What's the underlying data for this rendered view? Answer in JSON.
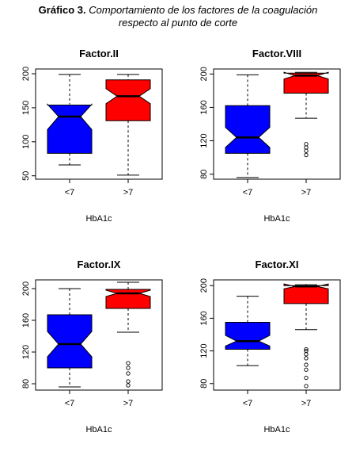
{
  "caption": {
    "lead": "Gráfico 3.",
    "line1": "Comportamiento de los factores de la coagulación",
    "line2": "respecto al punto de corte"
  },
  "colors": {
    "low_group": "#0000ff",
    "high_group": "#ff0000",
    "outline": "#000000"
  },
  "chart_data": [
    {
      "type": "boxplot",
      "title": "Factor.II",
      "xlabel": "HbA1c",
      "categories": [
        "<7",
        ">7"
      ],
      "yticks": [
        50,
        100,
        150,
        200
      ],
      "ylim": [
        45,
        207
      ],
      "notched": true,
      "boxes": [
        {
          "category": "<7",
          "color": "#0000ff",
          "whisker_low": 66,
          "q1": 83,
          "median": 137,
          "q3": 154,
          "whisker_high": 199,
          "notch_low": 118,
          "notch_high": 155,
          "outliers": []
        },
        {
          "category": ">7",
          "color": "#ff0000",
          "whisker_low": 51,
          "q1": 131,
          "median": 167,
          "q3": 191,
          "whisker_high": 199,
          "notch_low": 156,
          "notch_high": 178,
          "outliers": []
        }
      ]
    },
    {
      "type": "boxplot",
      "title": "Factor.VIII",
      "xlabel": "HbA1c",
      "categories": [
        "<7",
        ">7"
      ],
      "yticks": [
        80,
        120,
        160,
        200
      ],
      "ylim": [
        74,
        206
      ],
      "notched": true,
      "boxes": [
        {
          "category": "<7",
          "color": "#0000ff",
          "whisker_low": 76,
          "q1": 105,
          "median": 124,
          "q3": 162,
          "whisker_high": 199,
          "notch_low": 112,
          "notch_high": 136,
          "outliers": []
        },
        {
          "category": ">7",
          "color": "#ff0000",
          "whisker_low": 147,
          "q1": 177,
          "median": 198,
          "q3": 201,
          "whisker_high": 202,
          "notch_low": 194,
          "notch_high": 202,
          "outliers": [
            103,
            108,
            112,
            116
          ]
        }
      ]
    },
    {
      "type": "boxplot",
      "title": "Factor.IX",
      "xlabel": "HbA1c",
      "categories": [
        "<7",
        ">7"
      ],
      "yticks": [
        80,
        120,
        160,
        200
      ],
      "ylim": [
        72,
        211
      ],
      "notched": true,
      "boxes": [
        {
          "category": "<7",
          "color": "#0000ff",
          "whisker_low": 76,
          "q1": 100,
          "median": 130,
          "q3": 167,
          "whisker_high": 200,
          "notch_low": 114,
          "notch_high": 146,
          "outliers": []
        },
        {
          "category": ">7",
          "color": "#ff0000",
          "whisker_low": 145,
          "q1": 175,
          "median": 194,
          "q3": 199,
          "whisker_high": 208,
          "notch_low": 190,
          "notch_high": 198,
          "outliers": [
            78,
            83,
            93,
            100,
            106
          ]
        }
      ]
    },
    {
      "type": "boxplot",
      "title": "Factor.XI",
      "xlabel": "HbA1c",
      "categories": [
        "<7",
        ">7"
      ],
      "yticks": [
        80,
        120,
        160,
        200
      ],
      "ylim": [
        72,
        207
      ],
      "notched": true,
      "boxes": [
        {
          "category": "<7",
          "color": "#0000ff",
          "whisker_low": 102,
          "q1": 122,
          "median": 132,
          "q3": 155,
          "whisker_high": 187,
          "notch_low": 126,
          "notch_high": 139,
          "outliers": []
        },
        {
          "category": ">7",
          "color": "#ff0000",
          "whisker_low": 146,
          "q1": 178,
          "median": 199,
          "q3": 200,
          "whisker_high": 201,
          "notch_low": 196,
          "notch_high": 202,
          "outliers": [
            77,
            87,
            97,
            103,
            111,
            116,
            120,
            122
          ]
        }
      ]
    }
  ]
}
